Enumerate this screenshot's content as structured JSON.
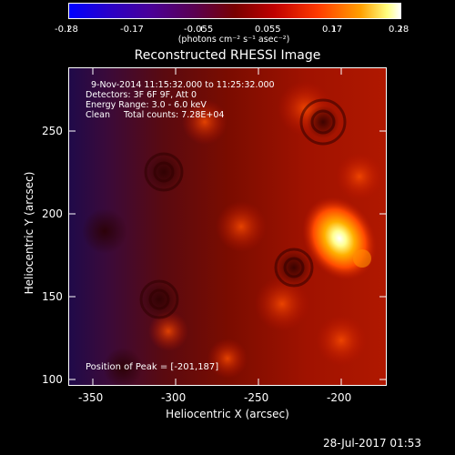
{
  "colorbar": {
    "tick_labels": [
      "-0.28",
      "-0.17",
      "-0.055",
      "0.055",
      "0.17",
      "0.28"
    ],
    "units_label": "(photons cm⁻² s⁻¹ asec⁻²)",
    "range": [
      -0.28,
      0.28
    ]
  },
  "plot": {
    "title": "Reconstructed RHESSI Image",
    "xlabel": "Heliocentric X (arcsec)",
    "ylabel": "Heliocentric Y (arcsec)",
    "x_ticks": [
      "-350",
      "-300",
      "-250",
      "-200"
    ],
    "y_ticks": [
      "250",
      "200",
      "150",
      "100"
    ],
    "info_lines": [
      "9-Nov-2014 11:15:32.000 to 11:25:32.000",
      "Detectors: 3F 6F 9F, Att 0",
      "Energy Range: 3.0 - 6.0 keV",
      "Clean     Total counts: 7.28E+04"
    ],
    "peak_label": "Position of Peak = [-201,187]",
    "peak": [
      -201,
      187
    ]
  },
  "footer": {
    "timestamp": "28-Jul-2017 01:53"
  }
}
